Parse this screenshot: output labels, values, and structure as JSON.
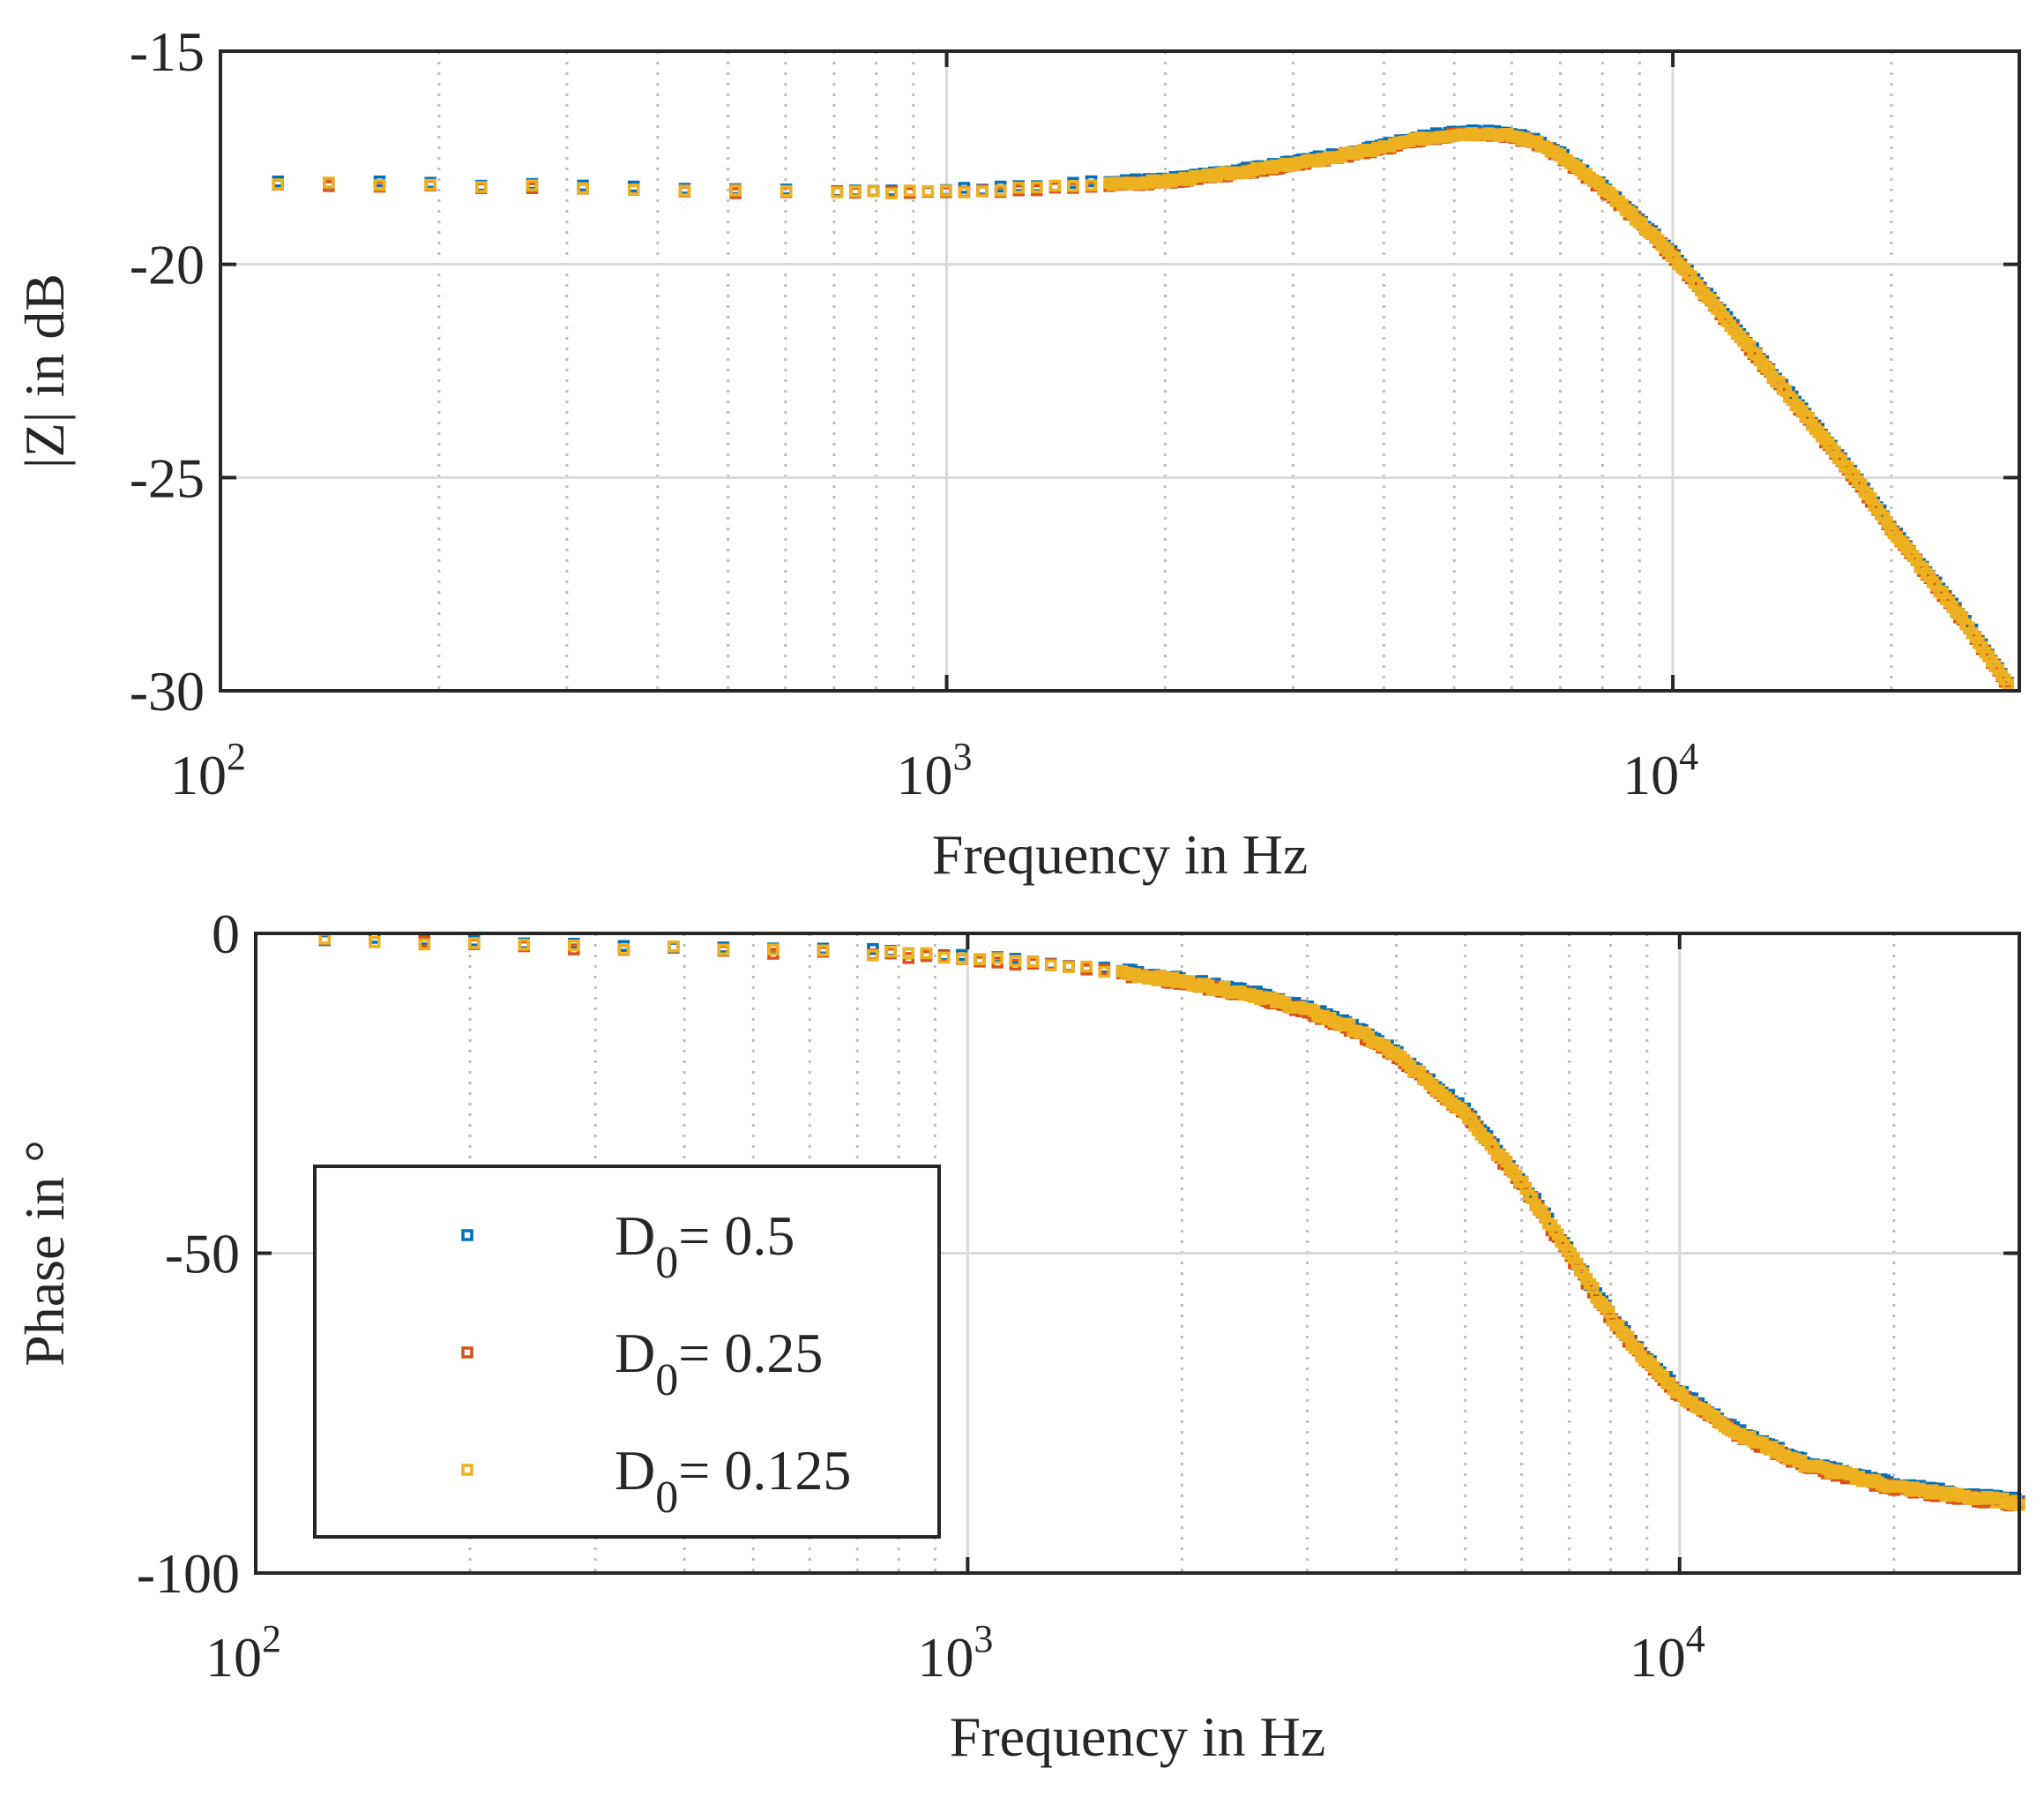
{
  "colors": {
    "series": [
      "#0072BD",
      "#D95319",
      "#EDB120"
    ],
    "grid": "#d9d9d9",
    "axis": "#262626"
  },
  "chart_data": [
    {
      "type": "scatter",
      "id": "magnitude",
      "title": "",
      "xlabel": "Frequency in Hz",
      "ylabel": "|Z| in dB",
      "xscale": "log",
      "xlim": [
        100,
        30000
      ],
      "ylim": [
        -30,
        -15
      ],
      "xticks": [
        100,
        1000,
        10000
      ],
      "xtick_labels": [
        {
          "base": "10",
          "exp": "2"
        },
        {
          "base": "10",
          "exp": "3"
        },
        {
          "base": "10",
          "exp": "4"
        }
      ],
      "yticks": [
        -30,
        -25,
        -20,
        -15
      ],
      "ytick_labels": [
        "-30",
        "-25",
        "-20",
        "-15"
      ],
      "grid": true,
      "minor_grid": true,
      "curve": {
        "f": [
          120,
          200,
          300,
          400,
          500,
          700,
          900,
          1000,
          1200,
          1500,
          2000,
          2500,
          3000,
          3500,
          4000,
          4500,
          5000,
          5500,
          6000,
          6500,
          7000,
          8000,
          9000,
          10000,
          12000,
          15000,
          18000,
          20000,
          22000,
          25000,
          27000,
          29000
        ],
        "y": [
          -18.1,
          -18.15,
          -18.2,
          -18.25,
          -18.3,
          -18.3,
          -18.3,
          -18.3,
          -18.25,
          -18.15,
          -18.05,
          -17.85,
          -17.65,
          -17.45,
          -17.25,
          -17.05,
          -16.95,
          -16.92,
          -16.98,
          -17.15,
          -17.45,
          -18.2,
          -19.0,
          -19.8,
          -21.4,
          -23.4,
          -25.1,
          -26.2,
          -27.1,
          -28.3,
          -29.1,
          -29.9
        ]
      },
      "series": [
        {
          "name": "D0 = 0.5",
          "offset": 0.04,
          "seed": 1
        },
        {
          "name": "D0 = 0.25",
          "offset": -0.02,
          "seed": 2
        },
        {
          "name": "D0 = 0.125",
          "offset": 0.0,
          "seed": 3
        }
      ]
    },
    {
      "type": "scatter",
      "id": "phase",
      "title": "",
      "xlabel": "Frequency in Hz",
      "ylabel": "Phase in °",
      "xscale": "log",
      "xlim": [
        100,
        30000
      ],
      "ylim": [
        -100,
        0
      ],
      "xticks": [
        100,
        1000,
        10000
      ],
      "xtick_labels": [
        {
          "base": "10",
          "exp": "2"
        },
        {
          "base": "10",
          "exp": "3"
        },
        {
          "base": "10",
          "exp": "4"
        }
      ],
      "yticks": [
        -100,
        -50,
        0
      ],
      "ytick_labels": [
        "-100",
        "-50",
        "0"
      ],
      "grid": true,
      "minor_grid": true,
      "curve": {
        "f": [
          125,
          200,
          300,
          400,
          500,
          700,
          900,
          1000,
          1500,
          2000,
          2500,
          3000,
          3500,
          4000,
          5000,
          6000,
          7000,
          8000,
          9000,
          10000,
          12000,
          15000,
          20000,
          25000,
          30000
        ],
        "y": [
          -1,
          -1.5,
          -2,
          -2.3,
          -2.6,
          -3,
          -3.5,
          -3.8,
          -5.5,
          -7.5,
          -9.5,
          -12,
          -15,
          -19,
          -28,
          -39,
          -50,
          -60,
          -67,
          -72,
          -78,
          -83,
          -86.5,
          -88,
          -89
        ]
      },
      "series": [
        {
          "name": "D0 = 0.5",
          "offset": 0.3,
          "seed": 4
        },
        {
          "name": "D0 = 0.25",
          "offset": -0.2,
          "seed": 5
        },
        {
          "name": "D0 = 0.125",
          "offset": 0.0,
          "seed": 6
        }
      ],
      "legend": {
        "placement": "lower-left",
        "entries": [
          {
            "base": "D",
            "sub": "0",
            "rest": "= 0.5"
          },
          {
            "base": "D",
            "sub": "0",
            "rest": "= 0.25"
          },
          {
            "base": "D",
            "sub": "0",
            "rest": "= 0.125"
          }
        ]
      }
    }
  ]
}
